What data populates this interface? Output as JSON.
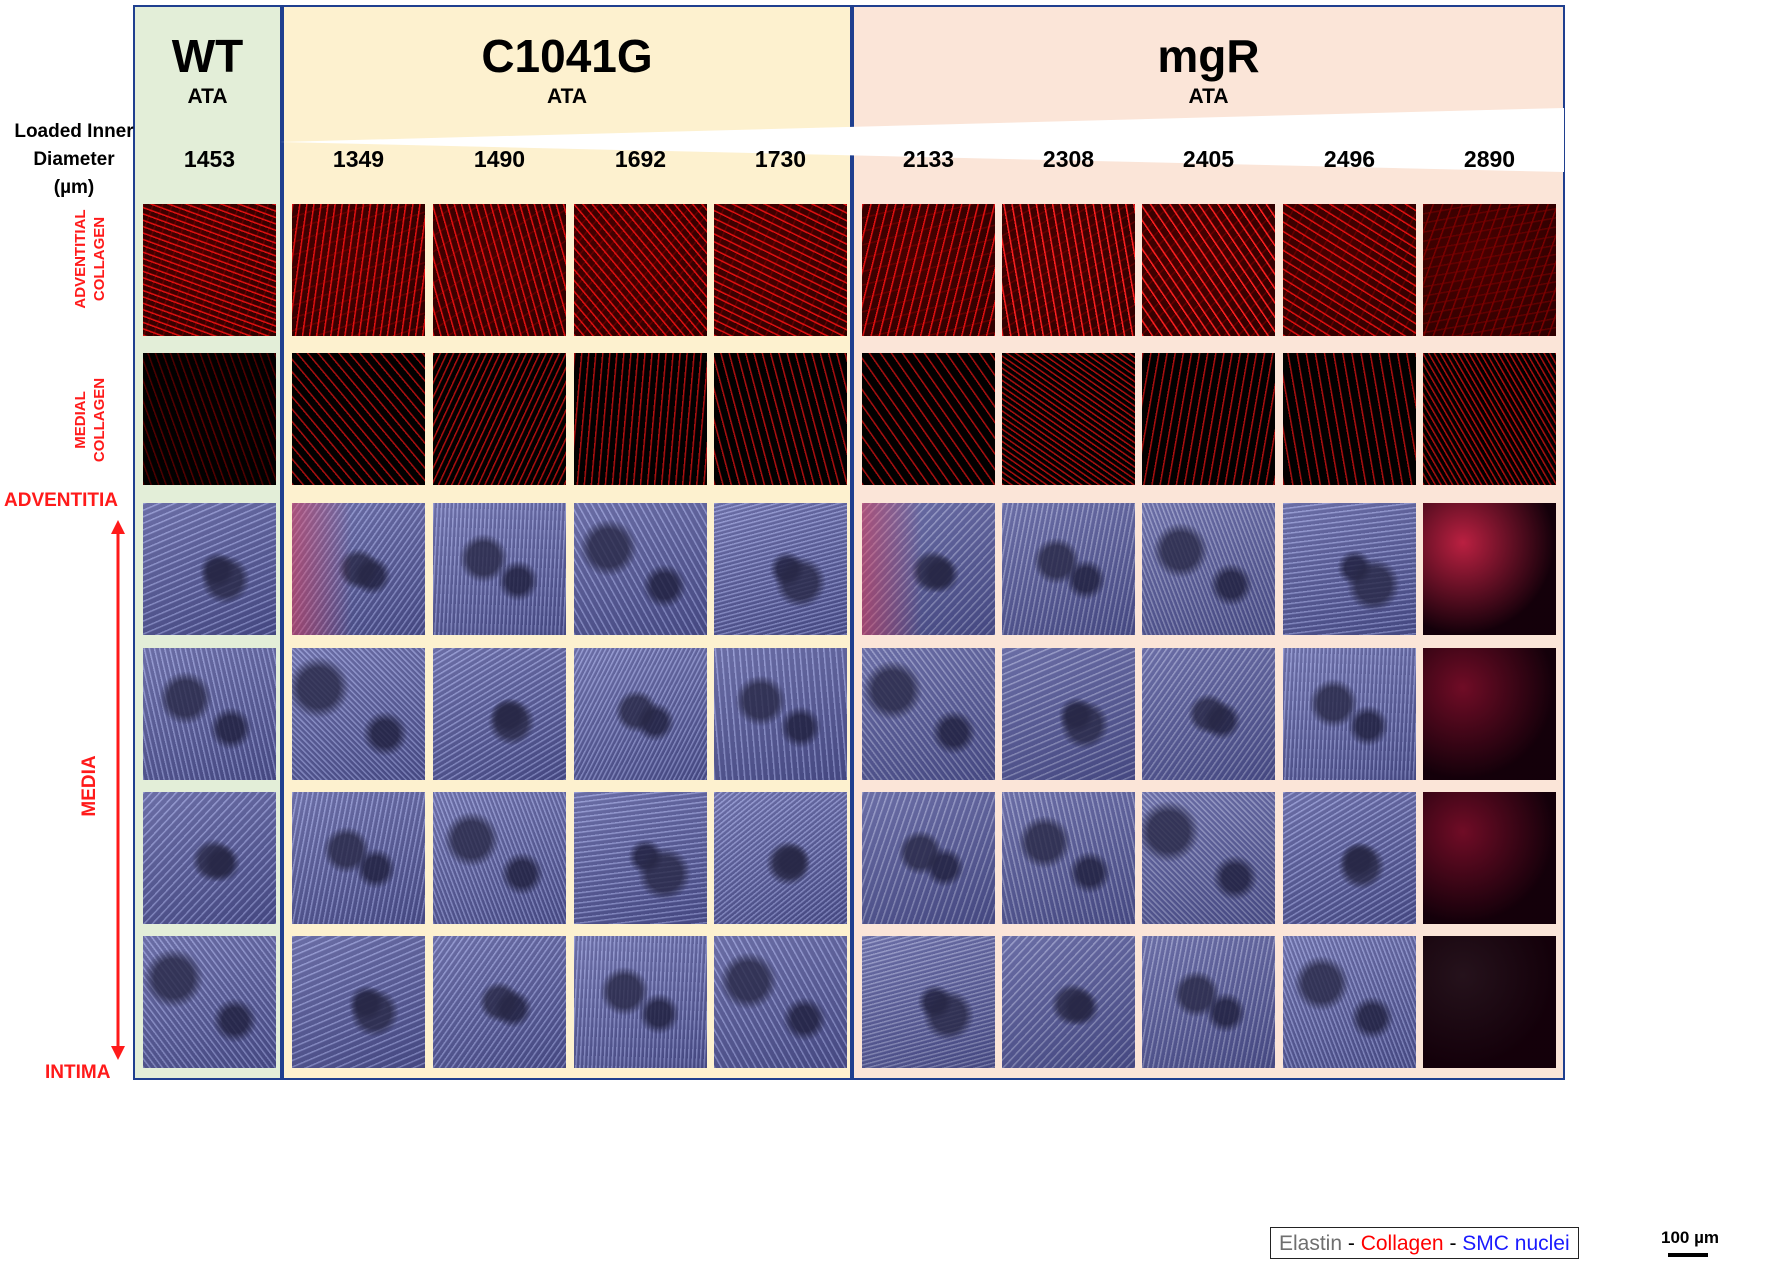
{
  "groups": [
    {
      "name": "WT",
      "sub": "ATA"
    },
    {
      "name": "C1041G",
      "sub": "ATA"
    },
    {
      "name": "mgR",
      "sub": "ATA"
    }
  ],
  "diameter_label": [
    "Loaded Inner",
    "Diameter",
    "(µm)"
  ],
  "diameters": [
    "1453",
    "1349",
    "1490",
    "1692",
    "1730",
    "2133",
    "2308",
    "2405",
    "2496",
    "2890"
  ],
  "row_labels": {
    "adventitial": [
      "ADVENTITIAL",
      "COLLAGEN"
    ],
    "medial": [
      "MEDIAL",
      "COLLAGEN"
    ],
    "adventitia": "ADVENTITIA",
    "media": "MEDIA",
    "intima": "INTIMA"
  },
  "legend": {
    "elastin": "Elastin",
    "sep1": " - ",
    "collagen": "Collagen",
    "sep2": " - ",
    "nuclei": "SMC nuclei"
  },
  "scale_bar": "100 µm",
  "colors": {
    "group_border": "#1f3f8f",
    "wt_bg": "#e3eed8",
    "c1041g_bg": "#fdf1cf",
    "mgr_bg": "#fbe5d8",
    "label_red": "#ff1a1a",
    "legend_elastin": "#6f6f6f",
    "legend_collagen": "#ff0000",
    "legend_nuclei": "#1a1aff"
  },
  "rows": [
    "adventitial-collagen",
    "medial-collagen",
    "layer-adventitia",
    "layer-media-1",
    "layer-media-2",
    "layer-intima"
  ]
}
